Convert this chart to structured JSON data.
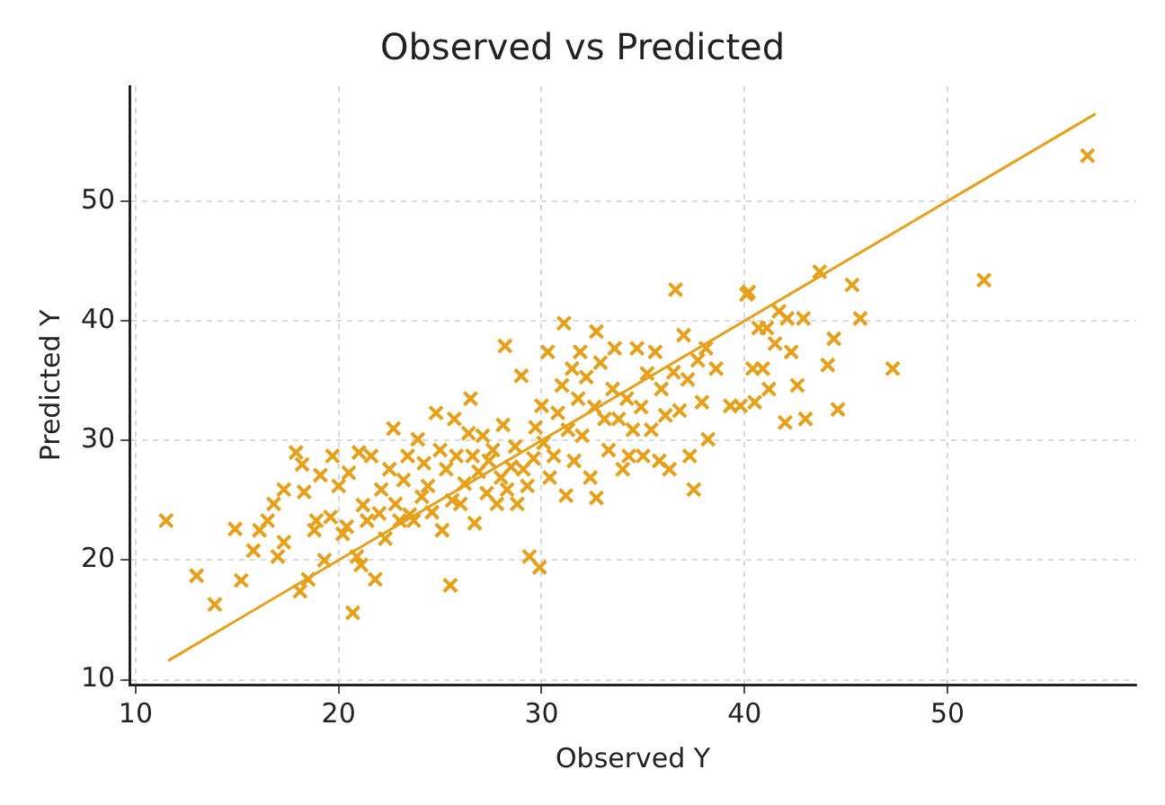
{
  "chart_data": {
    "type": "scatter",
    "title": "Observed vs Predicted",
    "xlabel": "Observed Y",
    "ylabel": "Predicted Y",
    "xlim": [
      9.7,
      59.3
    ],
    "ylim": [
      9.6,
      59.6
    ],
    "xticks": [
      10,
      20,
      30,
      40,
      50
    ],
    "yticks": [
      10,
      20,
      30,
      40,
      50
    ],
    "grid": true,
    "series": [
      {
        "marker": "cross",
        "color": "#e6a01a",
        "x": [
          11.5,
          13,
          13.9,
          14.9,
          15.2,
          15.8,
          16.1,
          16.5,
          16.8,
          17,
          17.3,
          17.3,
          17.9,
          18.2,
          18.1,
          18.3,
          18.5,
          18.8,
          18.9,
          19.1,
          19.3,
          19.6,
          19.7,
          20,
          20.2,
          20.4,
          20.5,
          20.7,
          20.9,
          21.1,
          21,
          21.2,
          21.4,
          21.6,
          21.8,
          22,
          22.1,
          22.3,
          22.5,
          22.7,
          22.8,
          23,
          23.2,
          23.4,
          23.5,
          23.7,
          23.9,
          24.1,
          24.2,
          24.4,
          24.6,
          24.8,
          25,
          25.1,
          25.3,
          25.5,
          25.6,
          25.7,
          25.8,
          26,
          26.2,
          26.4,
          26.5,
          26.6,
          26.7,
          26.9,
          27.1,
          27.3,
          27.4,
          27.6,
          27.8,
          28,
          28.1,
          28.2,
          28.3,
          28.5,
          28.7,
          28.8,
          29,
          29.1,
          29.3,
          29.4,
          29.6,
          29.7,
          29.9,
          30,
          30.1,
          30.3,
          30.4,
          30.6,
          30.8,
          31,
          31.1,
          31.2,
          31.3,
          31.5,
          31.6,
          31.8,
          31.9,
          32,
          32.2,
          32.4,
          32.6,
          32.7,
          32.7,
          32.9,
          33.1,
          33.3,
          33.5,
          33.6,
          33.8,
          34,
          34.2,
          34.3,
          34.5,
          34.7,
          34.9,
          35,
          35.2,
          35.4,
          35.6,
          35.8,
          35.9,
          36.1,
          36.3,
          36.5,
          36.6,
          36.8,
          37,
          37.2,
          37.3,
          37.5,
          37.7,
          37.9,
          38.1,
          38.2,
          38.6,
          39.3,
          39.8,
          40.1,
          40.2,
          40.4,
          40.5,
          40.7,
          40.9,
          41.1,
          41.2,
          41.5,
          41.7,
          42,
          42.1,
          42.3,
          42.6,
          42.9,
          43,
          43.7,
          44.1,
          44.4,
          44.6,
          45.3,
          45.7,
          47.3,
          51.8,
          56.9
        ],
        "values": [
          23.3,
          18.7,
          16.3,
          22.6,
          18.3,
          20.8,
          22.5,
          23.3,
          24.7,
          20.3,
          21.5,
          25.9,
          29,
          28,
          17.4,
          25.7,
          18.4,
          22.5,
          23.3,
          27.1,
          20,
          23.6,
          28.7,
          26.2,
          22.2,
          22.8,
          27.3,
          15.6,
          20.3,
          19.6,
          29,
          24.6,
          23.3,
          28.7,
          18.4,
          23.9,
          25.9,
          21.8,
          27.6,
          31,
          24.7,
          23.3,
          26.7,
          28.7,
          23.8,
          23.3,
          30.1,
          25.3,
          28.1,
          26.2,
          24,
          32.3,
          29.2,
          22.5,
          27.6,
          17.9,
          25,
          31.8,
          28.7,
          24.7,
          26.4,
          30.6,
          33.5,
          28.7,
          23.1,
          27.4,
          30.4,
          25.6,
          28.3,
          29.2,
          24.7,
          26.9,
          31.3,
          37.9,
          25.9,
          27.8,
          29.5,
          24.7,
          35.4,
          27.6,
          26.2,
          20.3,
          28.5,
          31.1,
          19.4,
          32.9,
          29.8,
          37.4,
          26.9,
          28.7,
          32.3,
          34.6,
          39.8,
          25.4,
          30.9,
          36,
          28.3,
          33.5,
          37.4,
          30.4,
          35.3,
          26.9,
          32.8,
          25.2,
          39.1,
          36.5,
          31.8,
          29.2,
          34.3,
          37.7,
          31.8,
          27.6,
          33.5,
          28.7,
          30.9,
          37.7,
          32.8,
          28.7,
          35.6,
          30.9,
          37.4,
          28.3,
          34.3,
          32.1,
          27.6,
          35.7,
          42.6,
          32.5,
          38.8,
          35.1,
          28.7,
          25.9,
          36.7,
          33.2,
          37.7,
          30.1,
          36,
          32.9,
          32.9,
          42.2,
          42.4,
          36,
          33.2,
          39.4,
          36,
          39.4,
          34.3,
          38.1,
          40.8,
          31.5,
          40.2,
          37.4,
          34.6,
          40.2,
          31.8,
          44.1,
          36.3,
          38.5,
          32.6,
          43,
          40.2,
          36,
          43.4,
          53.8
        ]
      },
      {
        "type": "line",
        "marker": "none",
        "color": "#e6a01a",
        "x": [
          11.6,
          57.3
        ],
        "values": [
          11.6,
          57.3
        ]
      }
    ]
  }
}
